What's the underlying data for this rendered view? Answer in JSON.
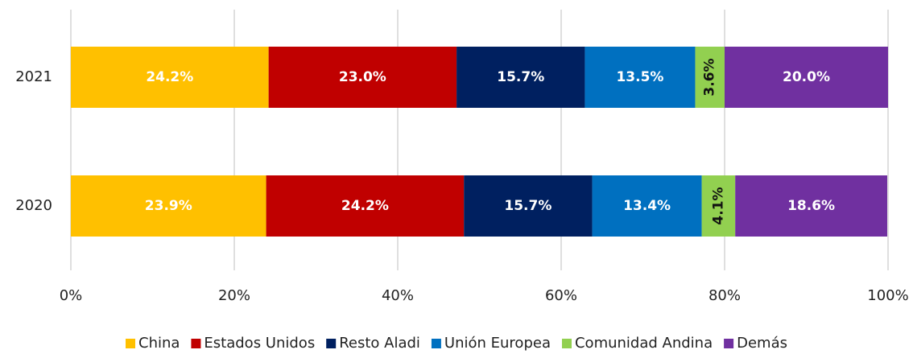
{
  "chart_data": {
    "type": "stacked-bar-horizontal",
    "categories": [
      "2021",
      "2020"
    ],
    "series": [
      {
        "name": "China",
        "color": "#ffc000",
        "values": [
          24.2,
          23.9
        ],
        "value_labels": [
          "24.2%",
          "23.9%"
        ]
      },
      {
        "name": "Estados Unidos",
        "color": "#c00000",
        "values": [
          23.0,
          24.2
        ],
        "value_labels": [
          "23.0%",
          "24.2%"
        ]
      },
      {
        "name": "Resto Aladi",
        "color": "#002060",
        "values": [
          15.7,
          15.7
        ],
        "value_labels": [
          "15.7%",
          "15.7%"
        ]
      },
      {
        "name": "Unión Europea",
        "color": "#0070c0",
        "values": [
          13.5,
          13.4
        ],
        "value_labels": [
          "13.5%",
          "13.4%"
        ]
      },
      {
        "name": "Comunidad Andina",
        "color": "#92d050",
        "values": [
          3.6,
          4.1
        ],
        "value_labels": [
          "3.6%",
          "4.1%"
        ]
      },
      {
        "name": "Demás",
        "color": "#7030a0",
        "values": [
          20.0,
          18.6
        ],
        "value_labels": [
          "20.0%",
          "18.6%"
        ]
      }
    ],
    "xlim": [
      0,
      100
    ],
    "xticks": [
      {
        "value": 0,
        "label": "0%"
      },
      {
        "value": 20,
        "label": "20%"
      },
      {
        "value": 40,
        "label": "40%"
      },
      {
        "value": 60,
        "label": "60%"
      },
      {
        "value": 80,
        "label": "80%"
      },
      {
        "value": 100,
        "label": "100%"
      }
    ],
    "grid": true,
    "legend": "bottom"
  }
}
